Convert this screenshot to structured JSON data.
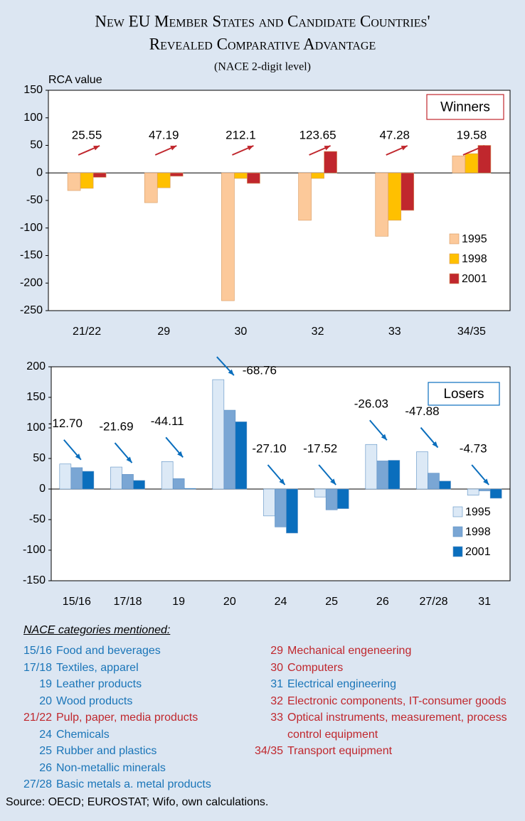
{
  "title_lines": [
    "New EU Member States and Candidate Countries'",
    "Revealed Comparative Advantage"
  ],
  "subtitle": "(NACE 2-digit level)",
  "chart_data": [
    {
      "type": "bar",
      "y_label": "RCA value",
      "legend_title": "Winners",
      "legend": "lower right",
      "categories": [
        "21/22",
        "29",
        "30",
        "32",
        "33",
        "34/35"
      ],
      "series": [
        {
          "name": "1995",
          "color": "#fcc99a",
          "values": [
            -32,
            -54,
            -232,
            -86,
            -115,
            31
          ]
        },
        {
          "name": "1998",
          "color": "#ffc000",
          "values": [
            -28,
            -27,
            -10,
            -10,
            -86,
            35
          ]
        },
        {
          "name": "2001",
          "color": "#c0272d",
          "values": [
            -8,
            -6,
            -19,
            39,
            -68,
            50
          ]
        }
      ],
      "annotations": [
        "25.55",
        "47.19",
        "212.1",
        "123.65",
        "47.28",
        "19.58"
      ],
      "annotation_color": "#c0272d",
      "ylim": [
        -250,
        150
      ],
      "yticks": [
        -250,
        -200,
        -150,
        -100,
        -50,
        0,
        50,
        100,
        150
      ]
    },
    {
      "type": "bar",
      "legend_title": "Losers",
      "legend": "right",
      "categories": [
        "15/16",
        "17/18",
        "19",
        "20",
        "24",
        "25",
        "26",
        "27/28",
        "31"
      ],
      "series": [
        {
          "name": "1995",
          "color": "#dce9f6",
          "values": [
            41,
            36,
            45,
            179,
            -44,
            -13,
            73,
            61,
            -10
          ]
        },
        {
          "name": "1998",
          "color": "#7aa6d4",
          "values": [
            35,
            24,
            17,
            129,
            -62,
            -34,
            46,
            26,
            -3
          ]
        },
        {
          "name": "2001",
          "color": "#0a6ebd",
          "values": [
            29,
            14,
            1,
            110,
            -72,
            -32,
            47,
            13,
            -15
          ]
        }
      ],
      "annotations": [
        "-12.70",
        "-21.69",
        "-44.11",
        "-68.76",
        "-27.10",
        "-17.52",
        "-26.03",
        "-47.88",
        "-4.73"
      ],
      "annotation_color": "#0a6ebd",
      "ylim": [
        -150,
        200
      ],
      "yticks": [
        -150,
        -100,
        -50,
        0,
        50,
        100,
        150,
        200
      ]
    }
  ],
  "notes": {
    "title": "NACE categories mentioned:",
    "left": [
      {
        "code": "15/16",
        "label": "Food and beverages",
        "color": "#1a75b8"
      },
      {
        "code": "17/18",
        "label": "Textiles, apparel",
        "color": "#1a75b8"
      },
      {
        "code": "19",
        "label": "Leather products",
        "color": "#1a75b8"
      },
      {
        "code": "20",
        "label": "Wood products",
        "color": "#1a75b8"
      },
      {
        "code": "21/22",
        "label": "Pulp, paper, media products",
        "color": "#c0272d"
      },
      {
        "code": "24",
        "label": "Chemicals",
        "color": "#1a75b8"
      },
      {
        "code": "25",
        "label": "Rubber and plastics",
        "color": "#1a75b8"
      },
      {
        "code": "26",
        "label": "Non-metallic minerals",
        "color": "#1a75b8"
      },
      {
        "code": "27/28",
        "label": "Basic metals a. metal products",
        "color": "#1a75b8"
      }
    ],
    "right": [
      {
        "code": "29",
        "label": "Mechanical engeneering",
        "color": "#c0272d"
      },
      {
        "code": "30",
        "label": "Computers",
        "color": "#c0272d"
      },
      {
        "code": "31",
        "label": "Electrical engineering",
        "color": "#1a75b8"
      },
      {
        "code": "32",
        "label": "Electronic components, IT-consumer goods",
        "color": "#c0272d"
      },
      {
        "code": "33",
        "label": "Optical instruments, measurement, process control equipment",
        "color": "#c0272d"
      },
      {
        "code": "34/35",
        "label": "Transport equipment",
        "color": "#c0272d"
      }
    ]
  },
  "source": "Source: OECD; EUROSTAT; Wifo, own calculations."
}
